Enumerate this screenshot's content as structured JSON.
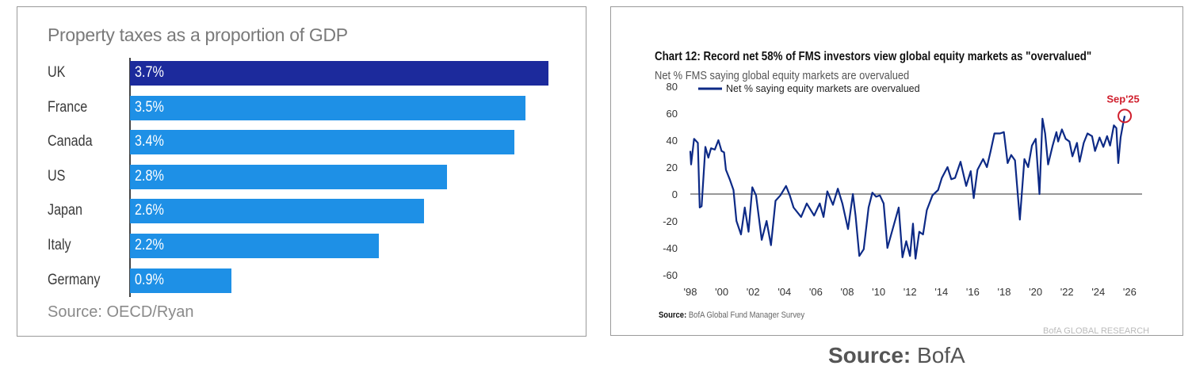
{
  "chart_data": [
    {
      "type": "bar",
      "orientation": "horizontal",
      "title": "Property taxes as a proportion of GDP",
      "categories": [
        "UK",
        "France",
        "Canada",
        "US",
        "Japan",
        "Italy",
        "Germany"
      ],
      "values": [
        3.7,
        3.5,
        3.4,
        2.8,
        2.6,
        2.2,
        0.9
      ],
      "data_labels": [
        "3.7%",
        "3.5%",
        "3.4%",
        "2.8%",
        "2.6%",
        "2.2%",
        "0.9%"
      ],
      "colors": [
        "#1c2a9c",
        "#1e90e6",
        "#1e90e6",
        "#1e90e6",
        "#1e90e6",
        "#1e90e6",
        "#1e90e6"
      ],
      "source": "Source: OECD/Ryan",
      "xlim": [
        0,
        3.7
      ]
    },
    {
      "type": "line",
      "title": "Chart 12: Record net 58% of FMS investors view global equity markets as \"overvalued\"",
      "subtitle": "Net % FMS saying global equity markets are overvalued",
      "legend": "Net % saying equity markets are overvalued",
      "legend_position": "top-left",
      "annotation": "Sep'25",
      "annotation_color": "#d0202e",
      "line_color": "#0d2a86",
      "ylim": [
        -60,
        80
      ],
      "yticks": [
        "80",
        "60",
        "40",
        "20",
        "0",
        "-20",
        "-40",
        "-60"
      ],
      "ytick_values": [
        80,
        60,
        40,
        20,
        0,
        -20,
        -40,
        -60
      ],
      "xlim": [
        1998,
        2026
      ],
      "xticks": [
        "'98",
        "'00",
        "'02",
        "'04",
        "'06",
        "'08",
        "'10",
        "'12",
        "'14",
        "'16",
        "'18",
        "'20",
        "'22",
        "'24",
        "'26"
      ],
      "source_label": "Source:",
      "source_text": "BofA Global Fund Manager Survey",
      "watermark": "BofA GLOBAL RESEARCH",
      "x": [
        1998.0,
        1998.05,
        1998.24,
        1998.48,
        1998.6,
        1998.72,
        1998.96,
        1999.15,
        1999.32,
        1999.56,
        1999.79,
        1999.99,
        2000.15,
        2000.27,
        2000.51,
        2000.75,
        2000.94,
        2001.23,
        2001.47,
        2001.71,
        2001.95,
        2002.19,
        2002.55,
        2002.86,
        2003.14,
        2003.43,
        2003.74,
        2004.1,
        2004.34,
        2004.58,
        2005.06,
        2005.42,
        2005.89,
        2006.25,
        2006.49,
        2006.73,
        2007.09,
        2007.4,
        2007.69,
        2008.05,
        2008.36,
        2008.53,
        2008.77,
        2009.05,
        2009.36,
        2009.6,
        2009.84,
        2010.08,
        2010.32,
        2010.56,
        2010.8,
        2011.28,
        2011.52,
        2011.76,
        2012.0,
        2012.19,
        2012.35,
        2012.59,
        2012.83,
        2013.07,
        2013.43,
        2013.79,
        2014.03,
        2014.39,
        2014.63,
        2014.87,
        2015.22,
        2015.58,
        2015.87,
        2016.06,
        2016.3,
        2016.66,
        2016.9,
        2017.14,
        2017.38,
        2017.74,
        2017.98,
        2018.22,
        2018.45,
        2018.69,
        2019.0,
        2019.29,
        2019.53,
        2019.77,
        2020.01,
        2020.25,
        2020.44,
        2020.61,
        2020.8,
        2021.09,
        2021.33,
        2021.44,
        2021.68,
        2021.92,
        2022.16,
        2022.35,
        2022.64,
        2022.81,
        2023.07,
        2023.31,
        2023.6,
        2023.79,
        2024.08,
        2024.32,
        2024.56,
        2024.75,
        2024.99,
        2025.15,
        2025.27,
        2025.42,
        2025.56,
        2025.68
      ],
      "y": [
        32,
        22,
        41,
        38,
        -10,
        -9,
        35,
        27,
        34,
        33,
        40,
        32,
        31,
        18,
        11,
        3,
        -20,
        -30,
        -10,
        -28,
        5,
        -1,
        -34,
        -20,
        -38,
        -5,
        -1,
        6,
        -1,
        -10,
        -17,
        -7,
        -16,
        -7,
        -17,
        2,
        -8,
        4,
        -7,
        -26,
        0,
        -16,
        -46,
        -41,
        -10,
        1,
        -2,
        -1,
        -7,
        -40,
        -30,
        -10,
        -47,
        -35,
        -46,
        -22,
        -48,
        -28,
        -30,
        -12,
        -1,
        3,
        12,
        20,
        11,
        12,
        24,
        6,
        17,
        -3,
        18,
        26,
        20,
        32,
        45,
        45,
        46,
        23,
        29,
        25,
        -19,
        26,
        20,
        36,
        41,
        0,
        56,
        45,
        22,
        36,
        46,
        39,
        48,
        41,
        39,
        28,
        38,
        24,
        38,
        45,
        43,
        32,
        42,
        35,
        43,
        36,
        51,
        49,
        23,
        42,
        51,
        58
      ]
    }
  ],
  "footer": {
    "source_label": "Source:",
    "source_text": " BofA"
  }
}
